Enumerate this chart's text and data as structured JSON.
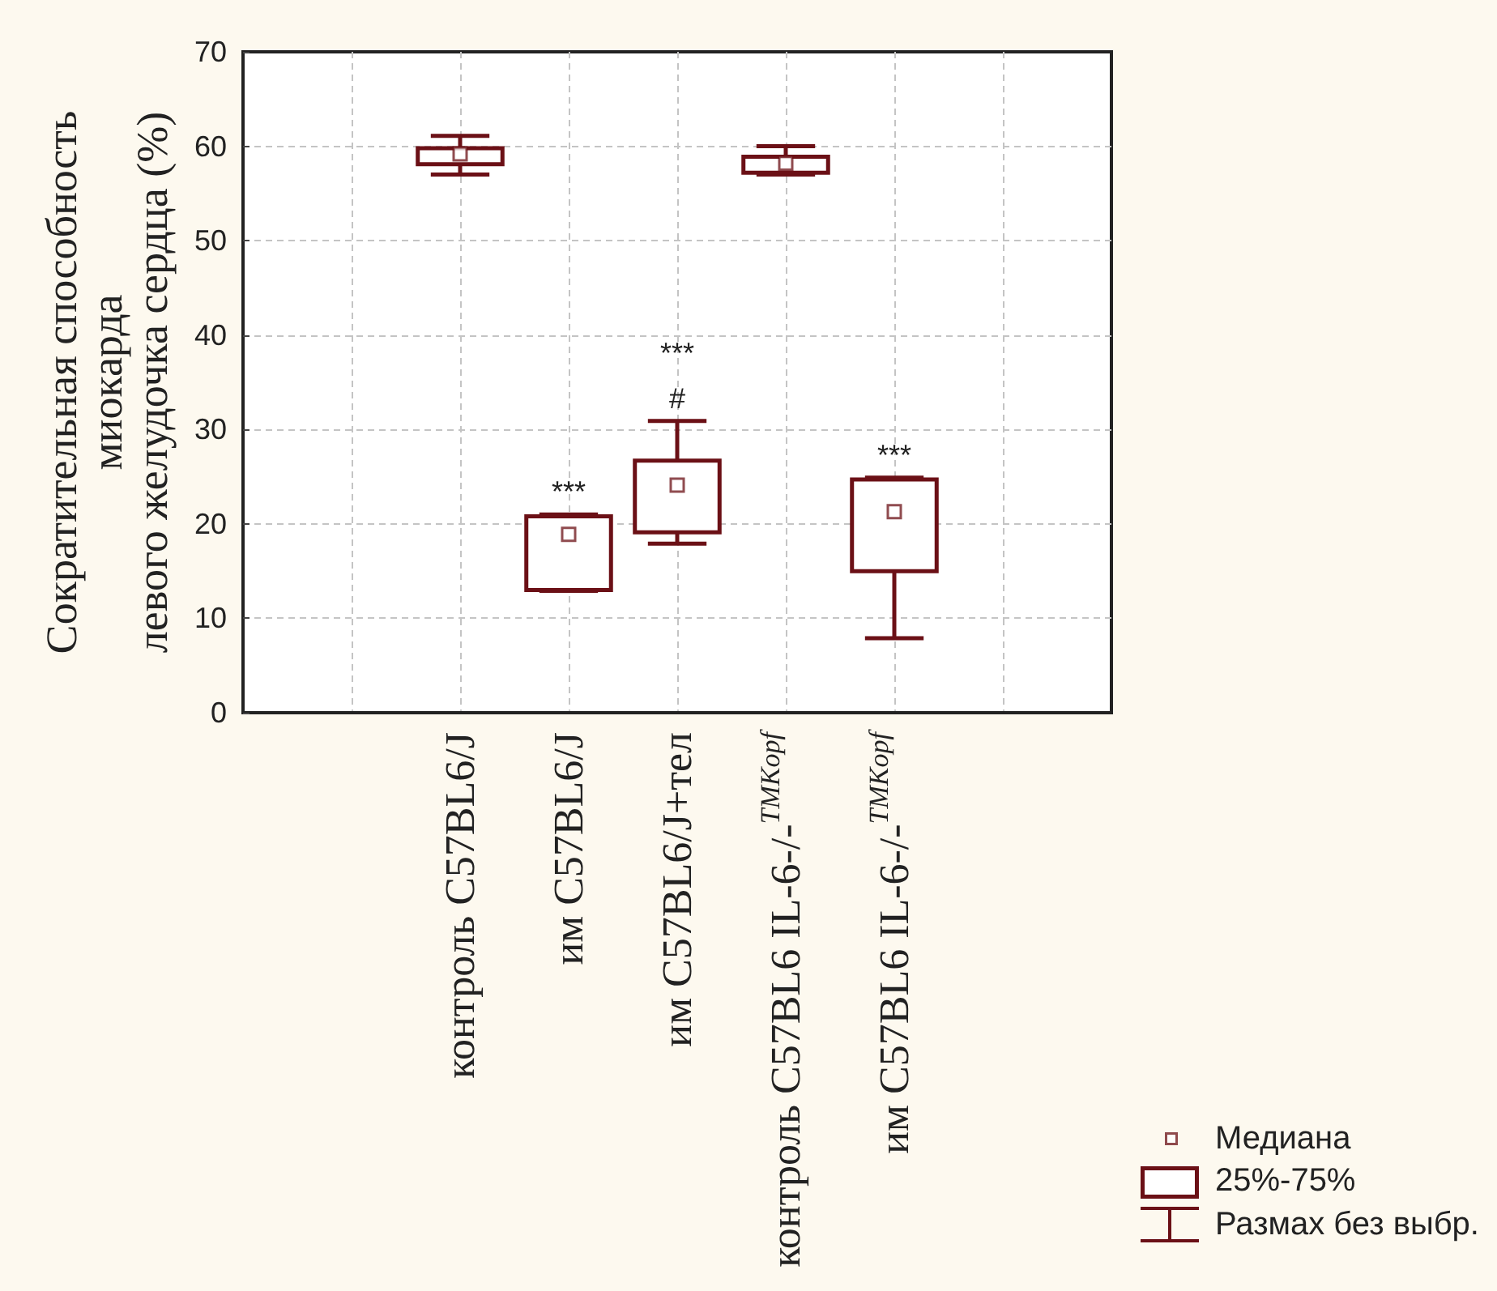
{
  "chart_data": {
    "type": "box",
    "categories": [
      null,
      null,
      "контроль C57BL6/J",
      "им C57BL6/J",
      "им C57BL6/J+тел",
      "контроль C57BL6 IL-6-/-$^{TMKopf}$",
      "им C57BL6 IL-6-/-$^{TMKopf}$",
      null,
      null
    ],
    "boxes": [
      null,
      null,
      {
        "low": 57.0,
        "q1": 58.1,
        "median": 59.2,
        "q3": 59.8,
        "high": 61.1
      },
      {
        "low": 12.9,
        "q1": 13.0,
        "median": 18.9,
        "q3": 20.8,
        "high": 21.0
      },
      {
        "low": 17.9,
        "q1": 19.1,
        "median": 24.1,
        "q3": 26.7,
        "high": 30.9
      },
      {
        "low": 57.0,
        "q1": 57.2,
        "median": 58.2,
        "q3": 58.9,
        "high": 60.0
      },
      {
        "low": 7.9,
        "q1": 15.0,
        "median": 21.3,
        "q3": 24.7,
        "high": 24.9
      },
      null,
      null
    ],
    "color": "#6b1016",
    "ylabel": "Сократительная способность\nмиокарда\nлевого желудочка сердца (%)",
    "ylim": [
      0,
      70
    ],
    "yticks": [
      0,
      10,
      20,
      30,
      40,
      50,
      60,
      70
    ],
    "grid": true,
    "annotations": [
      {
        "text": "***",
        "x": "им C57BL6/J",
        "y": 21.0
      },
      {
        "text": "#",
        "x": "им C57BL6/J+тел",
        "y": 30.9
      },
      {
        "text": "***",
        "x": "им C57BL6/J+тел",
        "y": 30.9
      },
      {
        "text": "***",
        "x": "им C57BL6 IL-6-/-$^{TMKopf}$",
        "y": 24.9
      },
      "Медиана",
      "25%-75%",
      "Размах без выбр."
    ]
  }
}
